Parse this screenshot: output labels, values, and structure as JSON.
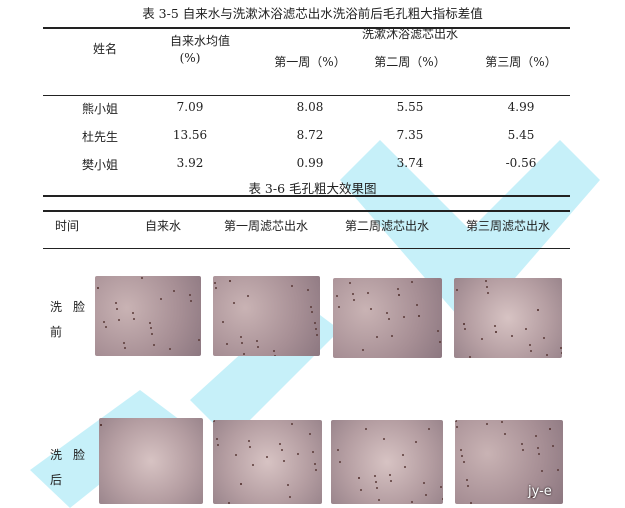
{
  "table1": {
    "caption": "表 3-5 自来水与洗漱沐浴滤芯出水洗浴前后毛孔粗大指标差值",
    "headers": {
      "name": "姓名",
      "tap": "自来水均值",
      "tap_unit": "(%)",
      "filter_group": "洗漱沐浴滤芯出水",
      "week1": "第一周（%）",
      "week2": "第二周（%）",
      "week3": "第三周（%）"
    },
    "rows": [
      {
        "name": "熊小姐",
        "tap": "7.09",
        "w1": "8.08",
        "w2": "5.55",
        "w3": "4.99"
      },
      {
        "name": "杜先生",
        "tap": "13.56",
        "w1": "8.72",
        "w2": "7.35",
        "w3": "5.45"
      },
      {
        "name": "樊小姐",
        "tap": "3.92",
        "w1": "0.99",
        "w2": "3.74",
        "w3": "-0.56"
      }
    ]
  },
  "table2": {
    "caption": "表 3-6 毛孔粗大效果图",
    "headers": [
      "时间",
      "自来水",
      "第一周滤芯出水",
      "第二周滤芯出水",
      "第三周滤芯出水"
    ],
    "row_labels": [
      {
        "a": "洗",
        "b": "脸",
        "c": "前"
      },
      {
        "a": "洗",
        "b": "脸",
        "c": "后"
      }
    ]
  },
  "watermark": "jy-e",
  "colors": {
    "watermark": "#4fd0e8"
  }
}
